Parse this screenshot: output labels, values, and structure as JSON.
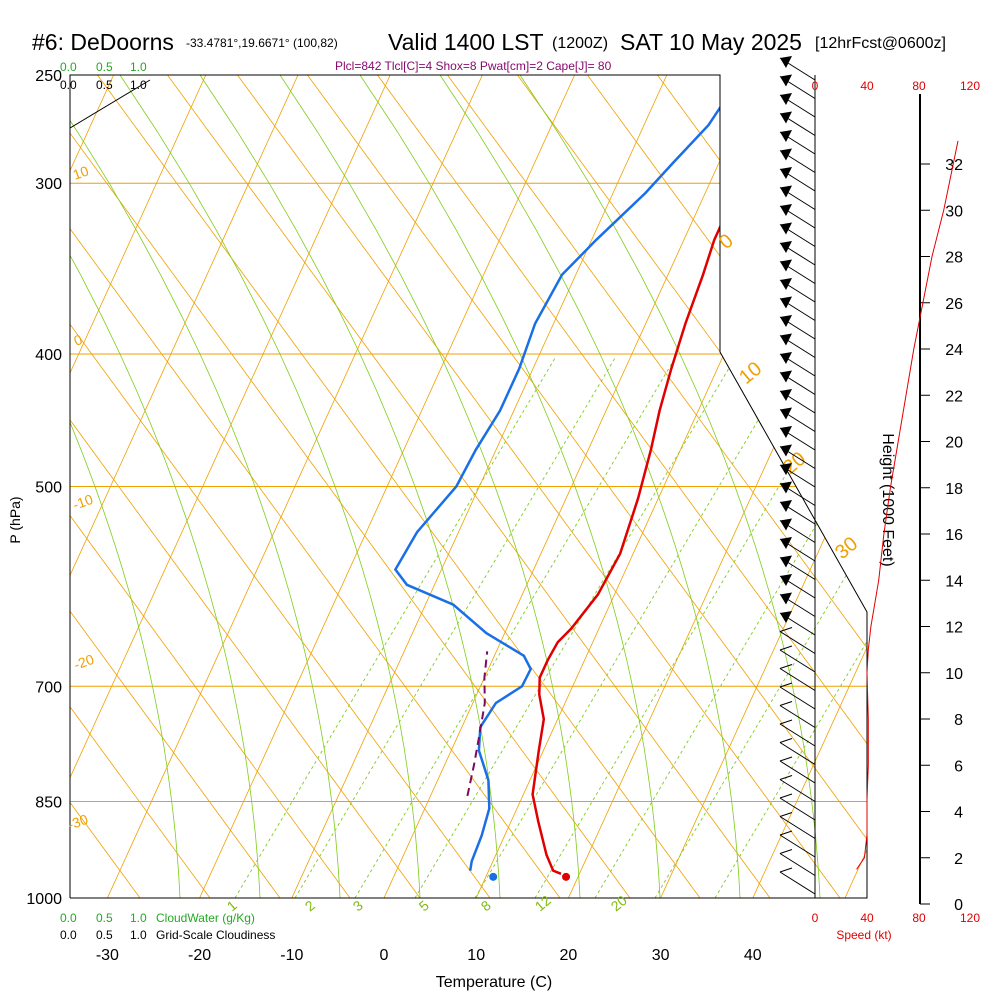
{
  "header": {
    "station": "#6: DeDoorns",
    "coords": "-33.4781°,19.6671° (100,82)",
    "valid": "Valid 1400 LST",
    "zulu": "(1200Z)",
    "date": "SAT 10 May 2025",
    "forecast": "[12hrFcst@0600z]",
    "indices": "Plcl=842 Tlcl[C]=4 Shox=8 Pwat[cm]=2 Cape[J]= 80"
  },
  "colors": {
    "temperature": "#e00000",
    "dewpoint": "#1a6fe6",
    "parcel": "#7a0a5e",
    "isobar_isotherm": "#f0a000",
    "mixing_ratio": "#7fcc1a",
    "wind": "#000000",
    "speed_scale": "#e00000",
    "cloud": "#22aa22"
  },
  "chart_data": {
    "type": "line",
    "title": "#6: DeDoorns",
    "xlabel": "Temperature (C)",
    "ylabel": "P (hPa)",
    "x_ticks": [
      -30,
      -20,
      -10,
      0,
      10,
      20,
      30,
      40
    ],
    "y_ticks": [
      250,
      300,
      400,
      500,
      700,
      850,
      1000
    ],
    "xlim": [
      -35,
      45
    ],
    "ylim": [
      1000,
      250
    ],
    "height_axis": {
      "label": "Height (1000 Feet)",
      "ticks": [
        0,
        2,
        4,
        6,
        8,
        10,
        12,
        14,
        16,
        18,
        20,
        22,
        24,
        26,
        28,
        30,
        32
      ]
    },
    "speed_axis": {
      "label": "Speed (kt)",
      "ticks": [
        0,
        40,
        80,
        120
      ]
    },
    "cloud_top_ticks": [
      "0.0",
      "0.5",
      "1.0"
    ],
    "cloud_inner_ticks": [
      "0.0",
      "0.5",
      "1.0"
    ],
    "cloud_bottom": {
      "ticks": [
        "0.0",
        "0.5",
        "1.0"
      ],
      "label": "CloudWater (g/Kg)",
      "grid_ticks": [
        "0.0",
        "0.5",
        "1.0"
      ],
      "grid_label": "Grid-Scale Cloudiness"
    },
    "isotherm_labels": [
      "10",
      "0",
      "-10",
      "-20",
      "-30"
    ],
    "dry_adiabat_labels": [
      "0",
      "10",
      "20",
      "30"
    ],
    "mixing_ratio_labels": [
      "1",
      "2",
      "3",
      "5",
      "8",
      "12",
      "20"
    ],
    "series": [
      {
        "key": "temperature",
        "points": [
          [
            18.0,
            960
          ],
          [
            17.0,
            955
          ],
          [
            15.5,
            930
          ],
          [
            13.0,
            880
          ],
          [
            11.0,
            840
          ],
          [
            9.5,
            780
          ],
          [
            8.5,
            740
          ],
          [
            6.8,
            710
          ],
          [
            6.0,
            690
          ],
          [
            6.0,
            670
          ],
          [
            6.2,
            650
          ],
          [
            7.0,
            635
          ],
          [
            8.2,
            600
          ],
          [
            8.6,
            560
          ],
          [
            7.8,
            510
          ],
          [
            6.8,
            470
          ],
          [
            5.8,
            440
          ],
          [
            5.0,
            410
          ],
          [
            4.3,
            380
          ],
          [
            3.8,
            350
          ],
          [
            3.3,
            330
          ],
          [
            3.3,
            310
          ],
          [
            2.8,
            295
          ],
          [
            2.4,
            280
          ],
          [
            2.1,
            265
          ],
          [
            1.6,
            254
          ]
        ]
      },
      {
        "key": "dewpoint",
        "points": [
          [
            8.0,
            955
          ],
          [
            7.7,
            940
          ],
          [
            7.5,
            900
          ],
          [
            7.0,
            860
          ],
          [
            5.5,
            820
          ],
          [
            3.0,
            780
          ],
          [
            2.0,
            750
          ],
          [
            2.5,
            720
          ],
          [
            4.5,
            700
          ],
          [
            4.6,
            680
          ],
          [
            3.2,
            665
          ],
          [
            -2.0,
            640
          ],
          [
            -7.0,
            610
          ],
          [
            -13.0,
            590
          ],
          [
            -15.0,
            575
          ],
          [
            -14.5,
            540
          ],
          [
            -12.5,
            500
          ],
          [
            -12.2,
            470
          ],
          [
            -11.5,
            440
          ],
          [
            -11.5,
            410
          ],
          [
            -12.0,
            380
          ],
          [
            -11.5,
            350
          ],
          [
            -9.5,
            330
          ],
          [
            -6.5,
            305
          ],
          [
            -5.0,
            290
          ],
          [
            -3.0,
            272
          ],
          [
            -2.3,
            258
          ]
        ]
      },
      {
        "key": "parcel",
        "points": [
          [
            4.0,
            842
          ],
          [
            3.2,
            800
          ],
          [
            2.3,
            760
          ],
          [
            1.3,
            720
          ],
          [
            0.0,
            690
          ],
          [
            -1.0,
            660
          ]
        ]
      }
    ],
    "surface_markers": [
      {
        "key": "temperature",
        "x": 18.7,
        "p": 965
      },
      {
        "key": "dewpoint",
        "x": 10.8,
        "p": 965
      }
    ],
    "wind_speed_profile": {
      "height_kft": [
        1.5,
        2.0,
        3.0,
        4.5,
        6.0,
        8.0,
        10.0,
        11.0,
        12.0,
        13.0,
        14.0,
        16.0,
        18.0,
        20.0,
        22.0,
        24.0,
        26.0,
        28.0,
        30.0,
        33.0
      ],
      "speed_kt": [
        32,
        38,
        40,
        40,
        41,
        41,
        40,
        41,
        43,
        46,
        49,
        53,
        58,
        64,
        70,
        76,
        83,
        90,
        99,
        110
      ]
    }
  }
}
